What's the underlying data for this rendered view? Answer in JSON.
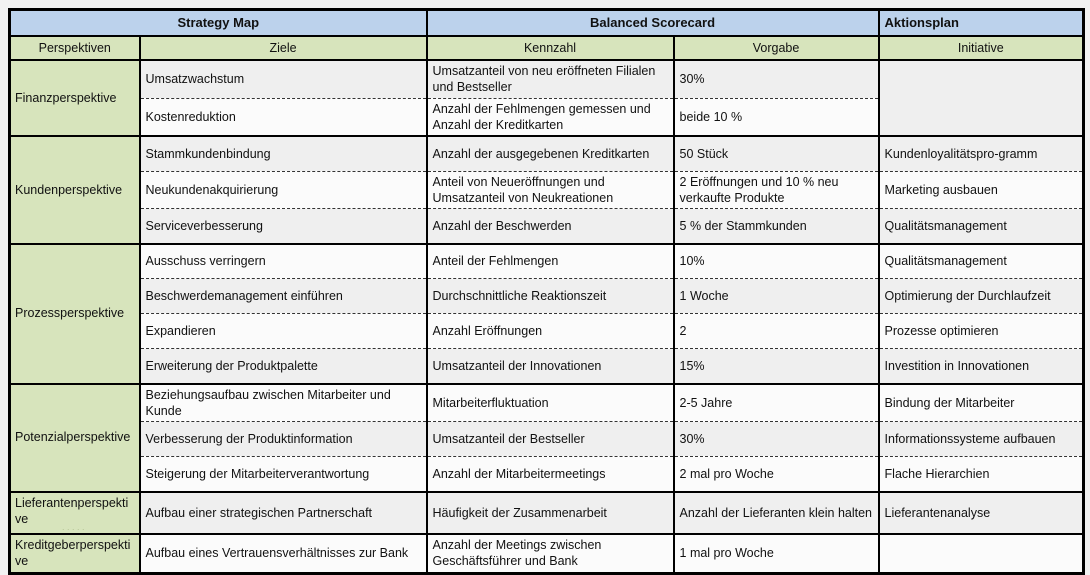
{
  "colors": {
    "header_blue": "#BCD2EC",
    "header_green": "#D7E4BC",
    "row_shade_dark": "#EFEFEF",
    "row_shade_light": "#FBFBFB",
    "border_black": "#000000",
    "page_background": "#F2F2F2"
  },
  "scorecard": {
    "top_headers": {
      "strategy_map": "Strategy Map",
      "balanced_scorecard": "Balanced Scorecard",
      "aktionsplan": "Aktionsplan"
    },
    "column_headers": {
      "perspektiven": "Perspektiven",
      "ziele": "Ziele",
      "kennzahl": "Kennzahl",
      "vorgabe": "Vorgabe",
      "initiative": "Initiative"
    },
    "sections": [
      {
        "perspective": "Finanzperspektive",
        "initiative_merged": "",
        "rows": [
          {
            "ziel": "Umsatzwachstum",
            "kennzahl": "Umsatzanteil von neu eröffneten Filialen und Bestseller",
            "vorgabe": "30%"
          },
          {
            "ziel": "Kostenreduktion",
            "kennzahl": "Anzahl der Fehlmengen gemessen und Anzahl der Kreditkarten",
            "vorgabe": "beide 10 %"
          }
        ]
      },
      {
        "perspective": "Kundenperspektive",
        "rows": [
          {
            "ziel": "Stammkundenbindung",
            "kennzahl": "Anzahl der ausgegebenen Kreditkarten",
            "vorgabe": "50 Stück",
            "initiative": "Kundenloyalitätspro-gramm"
          },
          {
            "ziel": "Neukundenakquirierung",
            "kennzahl": "Anteil von Neueröffnungen und Umsatzanteil von Neukreationen",
            "vorgabe": "2 Eröffnungen und 10 % neu verkaufte Produkte",
            "initiative": "Marketing ausbauen"
          },
          {
            "ziel": "Serviceverbesserung",
            "kennzahl": "Anzahl der Beschwerden",
            "vorgabe": "5 % der Stammkunden",
            "initiative": "Qualitätsmanagement"
          }
        ]
      },
      {
        "perspective": "Prozessperspektive",
        "rows": [
          {
            "ziel": "Ausschuss verringern",
            "kennzahl": "Anteil der Fehlmengen",
            "vorgabe": "10%",
            "initiative": "Qualitätsmanagement"
          },
          {
            "ziel": "Beschwerdemanagement einführen",
            "kennzahl": "Durchschnittliche  Reaktionszeit",
            "vorgabe": "1 Woche",
            "initiative": "Optimierung der Durchlaufzeit"
          },
          {
            "ziel": "Expandieren",
            "kennzahl": "Anzahl Eröffnungen",
            "vorgabe": "2",
            "initiative": "Prozesse optimieren"
          },
          {
            "ziel": "Erweiterung der Produktpalette",
            "kennzahl": "Umsatzanteil der Innovationen",
            "vorgabe": "15%",
            "initiative": "Investition in Innovationen"
          }
        ]
      },
      {
        "perspective": "Potenzialperspektive",
        "rows": [
          {
            "ziel": "Beziehungsaufbau zwischen Mitarbeiter und Kunde",
            "kennzahl": "Mitarbeiterfluktuation",
            "vorgabe": "2-5 Jahre",
            "initiative": "Bindung der Mitarbeiter"
          },
          {
            "ziel": "Verbesserung der Produktinformation",
            "kennzahl": "Umsatzanteil der  Bestseller",
            "vorgabe": "30%",
            "initiative": "Informationssysteme aufbauen"
          },
          {
            "ziel": "Steigerung der Mitarbeiterverantwortung",
            "kennzahl": "Anzahl der Mitarbeitermeetings",
            "vorgabe": "2 mal pro Woche",
            "initiative": "Flache Hierarchien"
          }
        ]
      },
      {
        "perspective": "Lieferantenperspektive",
        "ghost_mark": "·····",
        "rows": [
          {
            "ziel": "Aufbau einer strategischen Partnerschaft",
            "kennzahl": "Häufigkeit der Zusammenarbeit",
            "vorgabe": "Anzahl der Lieferanten klein halten",
            "initiative": "Lieferantenanalyse"
          }
        ]
      },
      {
        "perspective": "Kreditgeberperspektive",
        "rows": [
          {
            "ziel": "Aufbau eines Vertrauensverhältnisses zur Bank",
            "kennzahl": "Anzahl der Meetings zwischen Geschäftsführer und Bank",
            "vorgabe": "1 mal  pro Woche",
            "initiative": ""
          }
        ]
      }
    ]
  }
}
